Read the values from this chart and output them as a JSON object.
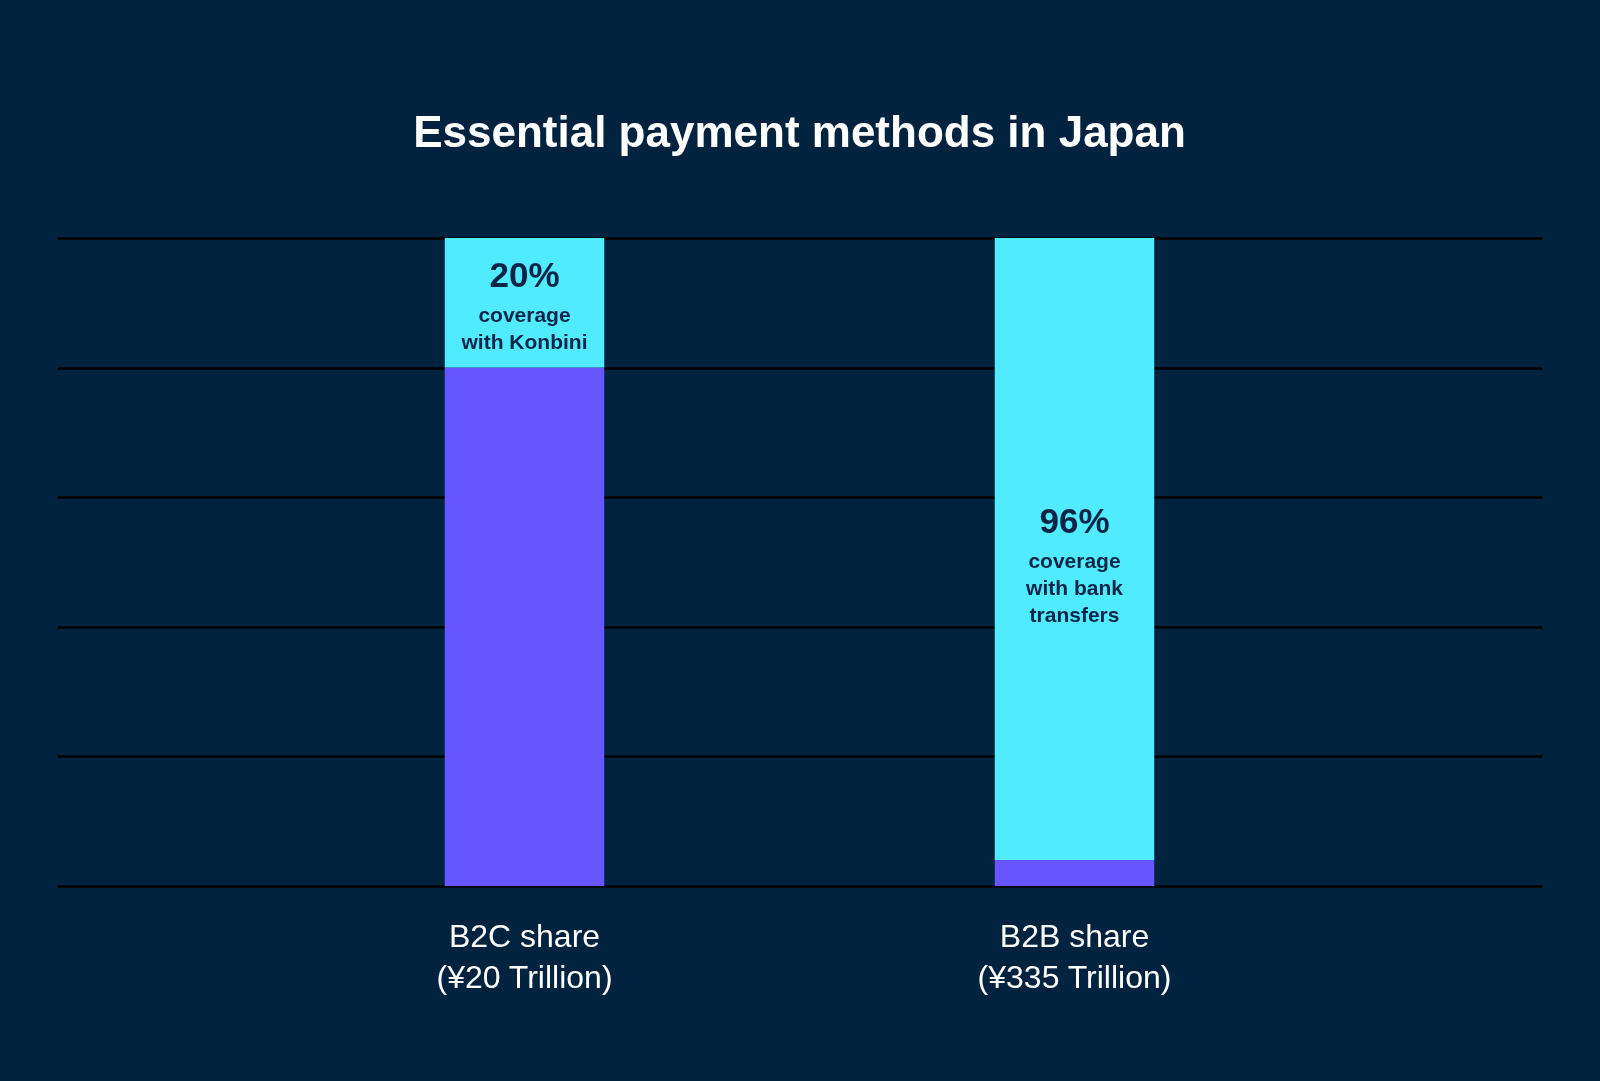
{
  "chart_data": {
    "type": "bar",
    "title": "Essential payment methods in Japan",
    "categories": [
      "B2C share\n(¥20 Trillion)",
      "B2B share\n(¥335 Trillion)"
    ],
    "stacked": true,
    "series": [
      {
        "color": "#6656ff",
        "values": [
          80,
          4
        ]
      },
      {
        "color": "#50ebff",
        "values": [
          20,
          96
        ],
        "value_labels": [
          "20%",
          "96%"
        ]
      }
    ],
    "annotations": [
      "coverage\nwith Konbini",
      "coverage\nwith bank\ntransfers"
    ],
    "ylim": [
      0,
      100
    ],
    "yticks": [
      {
        "value": 0,
        "label": null
      },
      {
        "value": 20,
        "label": null
      },
      {
        "value": 40,
        "label": null
      },
      {
        "value": 60,
        "label": null
      },
      {
        "value": 80,
        "label": null
      },
      {
        "value": 100,
        "label": null
      }
    ],
    "grid": "y",
    "tick_labels": "x"
  }
}
